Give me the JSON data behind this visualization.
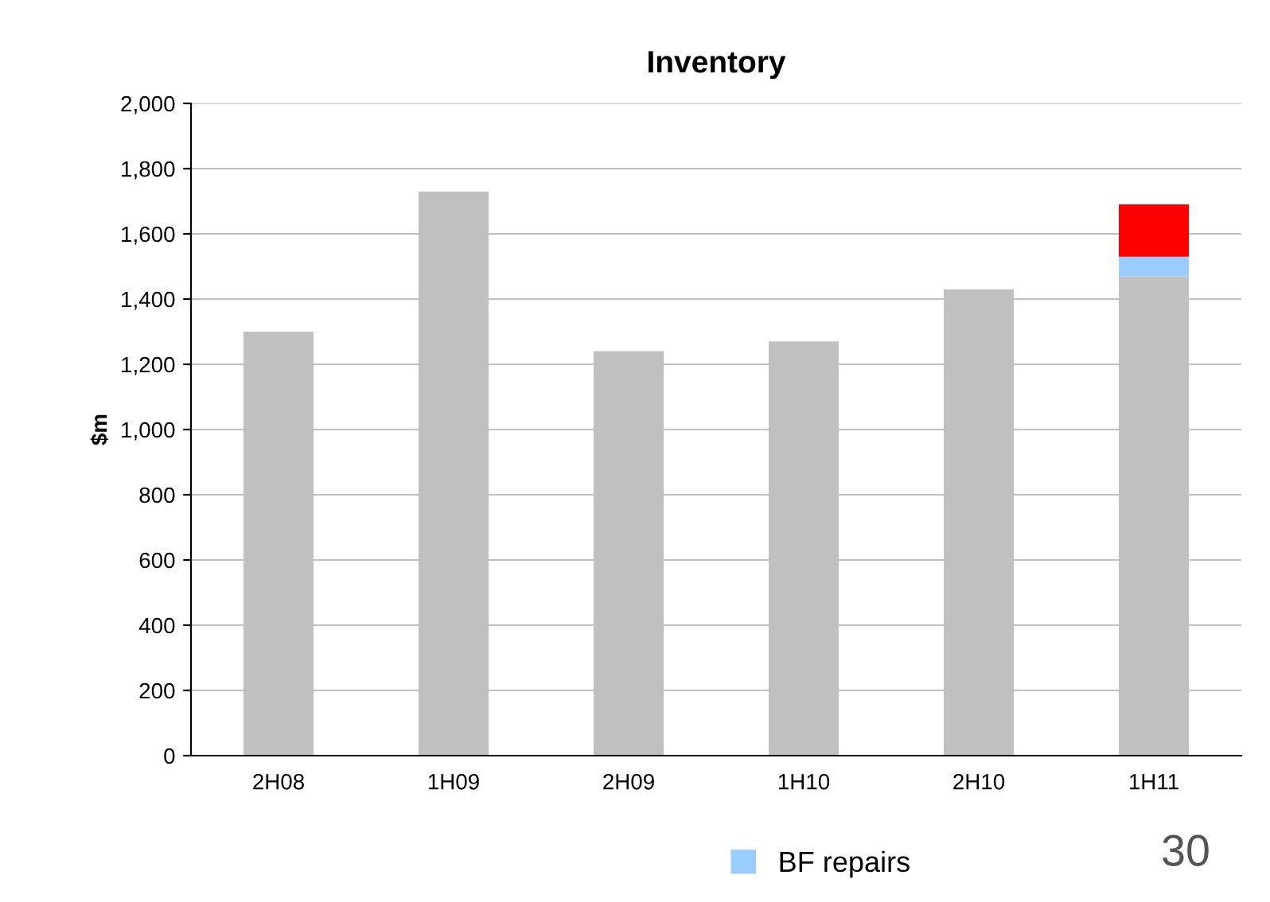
{
  "chart_data": {
    "type": "bar",
    "title": "Inventory",
    "ylabel": "$m",
    "categories": [
      "2H08",
      "1H09",
      "2H09",
      "1H10",
      "2H10",
      "1H11"
    ],
    "stacked": true,
    "series": [
      {
        "color": "#c0c0c0",
        "values": [
          1300,
          1730,
          1240,
          1270,
          1430,
          1470
        ]
      },
      {
        "name": "BF repairs",
        "color": "#99ccff",
        "values": [
          null,
          null,
          null,
          null,
          null,
          60
        ]
      },
      {
        "color": "#ff0000",
        "values": [
          null,
          null,
          null,
          null,
          null,
          160
        ]
      }
    ],
    "ylim": [
      0,
      2000
    ],
    "yticks": [
      {
        "value": 0,
        "label": "0"
      },
      {
        "value": 200,
        "label": "200"
      },
      {
        "value": 400,
        "label": "400"
      },
      {
        "value": 600,
        "label": "600"
      },
      {
        "value": 800,
        "label": "800"
      },
      {
        "value": 1000,
        "label": "1,000"
      },
      {
        "value": 1200,
        "label": "1,200"
      },
      {
        "value": 1400,
        "label": "1,400"
      },
      {
        "value": 1600,
        "label": "1,600"
      },
      {
        "value": 1800,
        "label": "1,800"
      },
      {
        "value": 2000,
        "label": "2,000"
      }
    ],
    "grid": "y",
    "legend": "bottom",
    "annotations": [
      "30"
    ]
  }
}
